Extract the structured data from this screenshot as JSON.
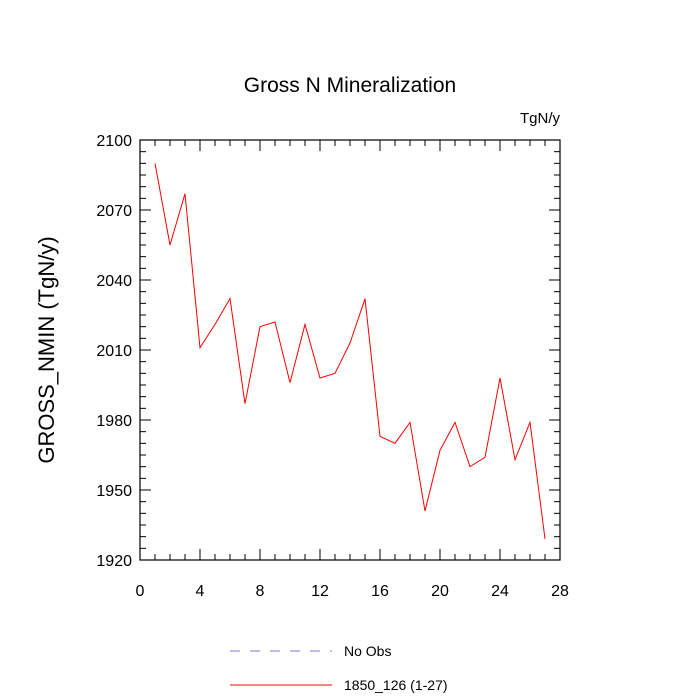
{
  "chart_data": {
    "type": "line",
    "title": "Gross N Mineralization",
    "units_label": "TgN/y",
    "ylabel": "GROSS_NMIN  (TgN/y)",
    "xlabel": "",
    "xlim": [
      0,
      28
    ],
    "ylim": [
      1920,
      2100
    ],
    "x_ticks": [
      0,
      4,
      8,
      12,
      16,
      20,
      24,
      28
    ],
    "y_ticks": [
      1920,
      1950,
      1980,
      2010,
      2040,
      2070,
      2100
    ],
    "x_minor_step": 1,
    "y_minor_step": 5,
    "grid": false,
    "legend_position": "bottom",
    "series": [
      {
        "name": "No Obs",
        "color": "#7b7bd8",
        "dash": "dashed",
        "x": [],
        "values": []
      },
      {
        "name": "1850_126 (1-27)",
        "color": "#ff0000",
        "dash": "solid",
        "x": [
          1,
          2,
          3,
          4,
          5,
          6,
          7,
          8,
          9,
          10,
          11,
          12,
          13,
          14,
          15,
          16,
          17,
          18,
          19,
          20,
          21,
          22,
          23,
          24,
          25,
          26,
          27
        ],
        "values": [
          2090,
          2055,
          2077,
          2011,
          2021,
          2032,
          1987,
          2020,
          2022,
          1996,
          2021,
          1998,
          2000,
          2013,
          2032,
          1973,
          1970,
          1979,
          1941,
          1967,
          1979,
          1960,
          1964,
          1998,
          1963,
          1979,
          1929
        ]
      }
    ]
  }
}
